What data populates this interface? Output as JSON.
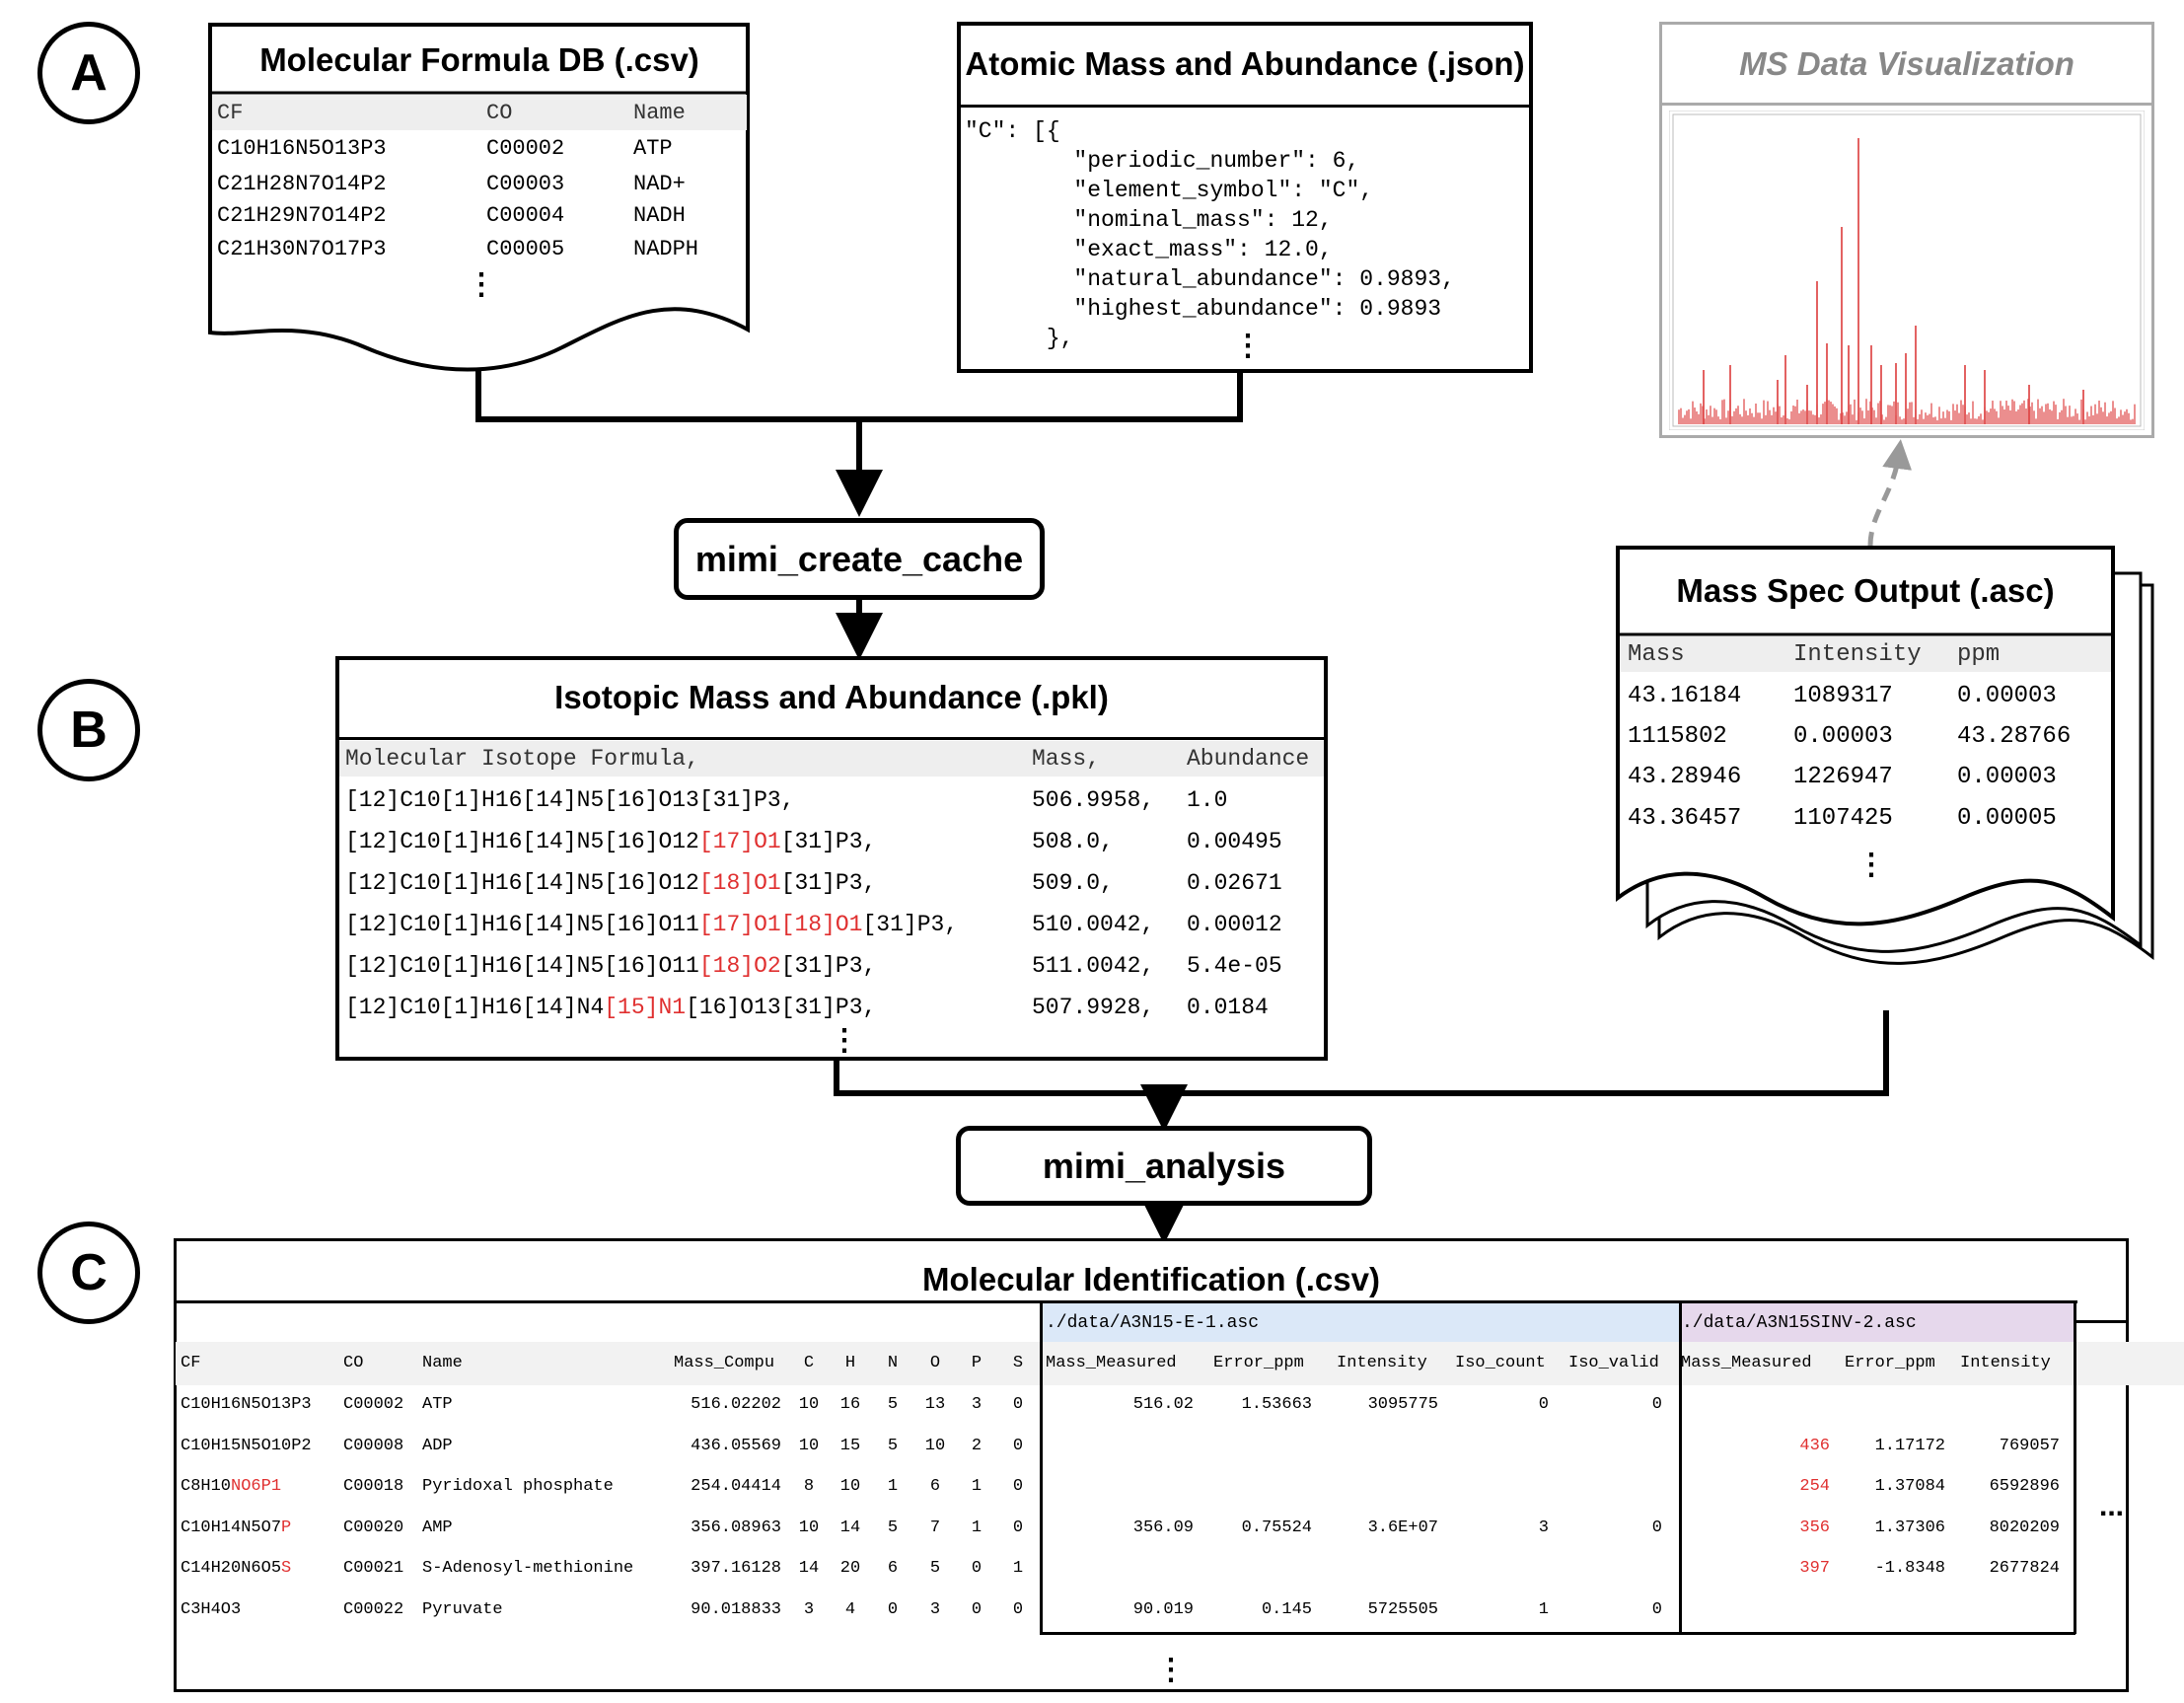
{
  "sections": {
    "a": "A",
    "b": "B",
    "c": "C"
  },
  "molecular_db": {
    "title": "Molecular Formula DB (.csv)",
    "headers": [
      "CF",
      "CO",
      "Name"
    ],
    "rows": [
      [
        "C10H16N5O13P3",
        "C00002",
        "ATP"
      ],
      [
        "C21H28N7O14P2",
        "C00003",
        "NAD+"
      ],
      [
        "C21H29N7O14P2",
        "C00004",
        "NADH"
      ],
      [
        "C21H30N7O17P3",
        "C00005",
        "NADPH"
      ]
    ],
    "ellipsis": "⋮"
  },
  "atomic_mass": {
    "title": "Atomic Mass and Abundance (.json)",
    "lines": [
      "\"C\": [{",
      "        \"periodic_number\": 6,",
      "        \"element_symbol\": \"C\",",
      "        \"nominal_mass\": 12,",
      "        \"exact_mass\": 12.0,",
      "        \"natural_abundance\": 0.9893,",
      "        \"highest_abundance\": 0.9893",
      "      },"
    ],
    "ellipsis": "⋮"
  },
  "ms_viz": {
    "title": "MS Data Visualization"
  },
  "process_create": {
    "label": "mimi_create_cache"
  },
  "process_analysis": {
    "label": "mimi_analysis"
  },
  "mass_spec": {
    "title": "Mass Spec Output (.asc)",
    "headers": [
      "Mass",
      "Intensity",
      "ppm"
    ],
    "rows": [
      [
        "43.16184",
        "1089317",
        "0.00003"
      ],
      [
        "1115802",
        "0.00003",
        "43.28766"
      ],
      [
        "43.28946",
        "1226947",
        "0.00003"
      ],
      [
        "43.36457",
        "1107425",
        "0.00005"
      ]
    ],
    "ellipsis": "⋮"
  },
  "isotopic": {
    "title": "Isotopic Mass and Abundance (.pkl)",
    "headers": [
      "Molecular Isotope Formula,",
      "Mass,",
      "Abundance"
    ],
    "rows": [
      {
        "parts": [
          {
            "t": "[12]C10[1]H16[14]N5[16]O13[31]P3,",
            "r": false
          }
        ],
        "mass": "506.9958,",
        "abund": "1.0"
      },
      {
        "parts": [
          {
            "t": "[12]C10[1]H16[14]N5[16]O12",
            "r": false
          },
          {
            "t": "[17]O1",
            "r": true
          },
          {
            "t": "[31]P3,",
            "r": false
          }
        ],
        "mass": "508.0,",
        "abund": "0.00495"
      },
      {
        "parts": [
          {
            "t": "[12]C10[1]H16[14]N5[16]O12",
            "r": false
          },
          {
            "t": "[18]O1",
            "r": true
          },
          {
            "t": "[31]P3,",
            "r": false
          }
        ],
        "mass": "509.0,",
        "abund": "0.02671"
      },
      {
        "parts": [
          {
            "t": "[12]C10[1]H16[14]N5[16]O11",
            "r": false
          },
          {
            "t": "[17]O1[18]O1",
            "r": true
          },
          {
            "t": "[31]P3,",
            "r": false
          }
        ],
        "mass": "510.0042,",
        "abund": "0.00012"
      },
      {
        "parts": [
          {
            "t": "[12]C10[1]H16[14]N5[16]O11",
            "r": false
          },
          {
            "t": "[18]O2",
            "r": true
          },
          {
            "t": "[31]P3,",
            "r": false
          }
        ],
        "mass": "511.0042,",
        "abund": "5.4e-05"
      },
      {
        "parts": [
          {
            "t": "[12]C10[1]H16[14]N4",
            "r": false
          },
          {
            "t": "[15]N1",
            "r": true
          },
          {
            "t": "[16]O13[31]P3,",
            "r": false
          }
        ],
        "mass": "507.9928,",
        "abund": "0.0184"
      }
    ],
    "ellipsis": "⋮"
  },
  "identification": {
    "title": "Molecular Identification (.csv)",
    "file1": "./data/A3N15-E-1.asc",
    "file2": "./data/A3N15SINV-2.asc",
    "headers_left": [
      "CF",
      "CO",
      "Name",
      "Mass_Compu",
      "C",
      "H",
      "N",
      "O",
      "P",
      "S"
    ],
    "headers_f1": [
      "Mass_Measured",
      "Error_ppm",
      "Intensity",
      "Iso_count",
      "Iso_valid"
    ],
    "headers_f2": [
      "Mass_Measured",
      "Error_ppm",
      "Intensity"
    ],
    "rows": [
      {
        "cf": [
          {
            "t": "C10H16N5O13P3",
            "r": false
          }
        ],
        "co": "C00002",
        "name": "ATP",
        "mass": "516.02202",
        "c": "10",
        "h": "16",
        "n": "5",
        "o": "13",
        "p": "3",
        "s": "0",
        "f1": [
          "516.02",
          "1.53663",
          "3095775",
          "0",
          "0"
        ],
        "f2": [
          "",
          "",
          ""
        ]
      },
      {
        "cf": [
          {
            "t": "C10H15N5O10P2",
            "r": false
          }
        ],
        "co": "C00008",
        "name": "ADP",
        "mass": "436.05569",
        "c": "10",
        "h": "15",
        "n": "5",
        "o": "10",
        "p": "2",
        "s": "0",
        "f1": [
          "",
          "",
          "",
          "",
          ""
        ],
        "f2": [
          "436",
          "1.17172",
          "769057"
        ]
      },
      {
        "cf": [
          {
            "t": "C8H10",
            "r": false
          },
          {
            "t": "NO6P1",
            "r": true
          }
        ],
        "co": "C00018",
        "name": "Pyridoxal phosphate",
        "mass": "254.04414",
        "c": "8",
        "h": "10",
        "n": "1",
        "o": "6",
        "p": "1",
        "s": "0",
        "f1": [
          "",
          "",
          "",
          "",
          ""
        ],
        "f2": [
          "254",
          "1.37084",
          "6592896"
        ]
      },
      {
        "cf": [
          {
            "t": "C10H14N5O7",
            "r": false
          },
          {
            "t": "P",
            "r": true
          }
        ],
        "co": "C00020",
        "name": "AMP",
        "mass": "356.08963",
        "c": "10",
        "h": "14",
        "n": "5",
        "o": "7",
        "p": "1",
        "s": "0",
        "f1": [
          "356.09",
          "0.75524",
          "3.6E+07",
          "3",
          "0"
        ],
        "f2": [
          "356",
          "1.37306",
          "8020209"
        ]
      },
      {
        "cf": [
          {
            "t": "C14H20N6O5",
            "r": false
          },
          {
            "t": "S",
            "r": true
          }
        ],
        "co": "C00021",
        "name": "S-Adenosyl-methionine",
        "mass": "397.16128",
        "c": "14",
        "h": "20",
        "n": "6",
        "o": "5",
        "p": "0",
        "s": "1",
        "f1": [
          "",
          "",
          "",
          "",
          ""
        ],
        "f2": [
          "397",
          "-1.8348",
          "2677824"
        ]
      },
      {
        "cf": [
          {
            "t": "C3H4O3",
            "r": false
          }
        ],
        "co": "C00022",
        "name": "Pyruvate",
        "mass": "90.018833",
        "c": "3",
        "h": "4",
        "n": "0",
        "o": "3",
        "p": "0",
        "s": "0",
        "f1": [
          "90.019",
          "0.145",
          "5725505",
          "1",
          "0"
        ],
        "f2": [
          "",
          "",
          ""
        ]
      }
    ],
    "ellipsis_right": "...",
    "ellipsis_bottom": "⋮"
  },
  "colors": {
    "red": "#e03030",
    "blue_header": "#dbe8f8",
    "purple_header": "#e6d8ec",
    "spectrum": "#e05050"
  }
}
